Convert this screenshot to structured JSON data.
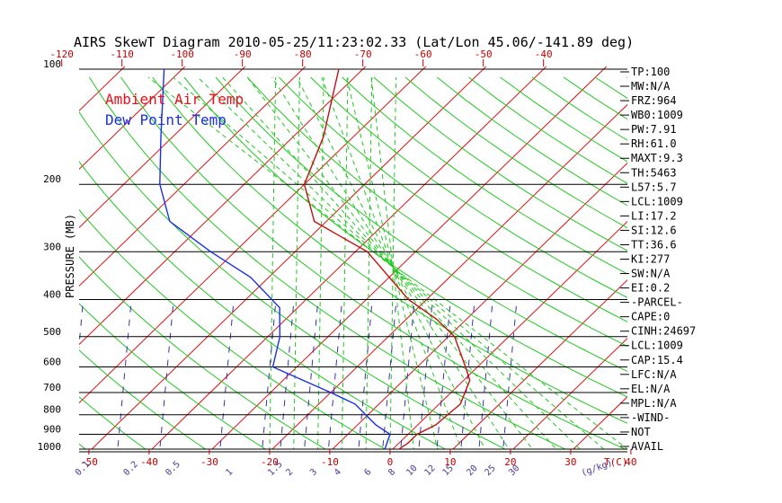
{
  "chart_data": {
    "type": "line",
    "title": "AIRS SkewT Diagram 2010-05-25/11:23:02.33 (Lat/Lon 45.06/-141.89 deg)",
    "ylabel": "PRESSURE (MB)",
    "xlabel_bottom_unit": "T(C)",
    "mixing_ratio_unit": "(g/kg)",
    "y_scale": "log",
    "ylim": [
      1000,
      100
    ],
    "pressure_ticks": [
      "100",
      "200",
      "300",
      "400",
      "500",
      "600",
      "700",
      "800",
      "900",
      "1000"
    ],
    "top_temp_ticks": [
      "-120",
      "-110",
      "-100",
      "-90",
      "-80",
      "-70",
      "-60",
      "-50",
      "-40"
    ],
    "bottom_temp_ticks": [
      "-50",
      "-40",
      "-30",
      "-20",
      "-10",
      "0",
      "10",
      "20",
      "30",
      "40"
    ],
    "mixing_ratio_ticks": [
      "0.1",
      "0.2",
      "0.5",
      "1",
      "1.5",
      "2",
      "3",
      "4",
      "6",
      "8",
      "10",
      "12",
      "15",
      "20",
      "25",
      "30"
    ],
    "legend": [
      {
        "name": "Ambient Air Temp",
        "color": "#e8101a"
      },
      {
        "name": "Dew Point Temp",
        "color": "#1a2ee8"
      }
    ],
    "series": [
      {
        "name": "Ambient Air Temp",
        "color": "#c01010",
        "points": [
          {
            "p": 1000,
            "t": 0.8
          },
          {
            "p": 950,
            "t": 1.5
          },
          {
            "p": 900,
            "t": 1.5
          },
          {
            "p": 850,
            "t": 3.0
          },
          {
            "p": 750,
            "t": 3.5
          },
          {
            "p": 650,
            "t": 1.0
          },
          {
            "p": 600,
            "t": -2.0
          },
          {
            "p": 500,
            "t": -9.0
          },
          {
            "p": 450,
            "t": -15.0
          },
          {
            "p": 400,
            "t": -23.0
          },
          {
            "p": 300,
            "t": -38.0
          },
          {
            "p": 250,
            "t": -52.0
          },
          {
            "p": 200,
            "t": -60.0
          },
          {
            "p": 150,
            "t": -65.0
          },
          {
            "p": 100,
            "t": -74.0
          }
        ]
      },
      {
        "name": "Dew Point Temp",
        "color": "#1a2ee8",
        "points": [
          {
            "p": 1000,
            "t": -1.0
          },
          {
            "p": 900,
            "t": -3.0
          },
          {
            "p": 850,
            "t": -7.0
          },
          {
            "p": 750,
            "t": -14.0
          },
          {
            "p": 700,
            "t": -20.0
          },
          {
            "p": 600,
            "t": -34.0
          },
          {
            "p": 500,
            "t": -38.0
          },
          {
            "p": 420,
            "t": -43.0
          },
          {
            "p": 350,
            "t": -53.0
          },
          {
            "p": 300,
            "t": -64.0
          },
          {
            "p": 250,
            "t": -76.0
          },
          {
            "p": 200,
            "t": -84.0
          },
          {
            "p": 150,
            "t": -92.0
          },
          {
            "p": 100,
            "t": -103.0
          }
        ]
      }
    ]
  },
  "stats": [
    "TP:100",
    "MW:N/A",
    "FRZ:964",
    "WB0:1009",
    "PW:7.91",
    "RH:61.0",
    "MAXT:9.3",
    "TH:5463",
    "L57:5.7",
    "LCL:1009",
    "LI:17.2",
    "SI:12.6",
    "TT:36.6",
    "KI:277",
    "SW:N/A",
    "EI:0.2",
    "-PARCEL-",
    "CAPE:0",
    "CINH:24697",
    "LCL:1009",
    "CAP:15.4",
    "LFC:N/A",
    "EL:N/A",
    "MPL:N/A",
    "-WIND-",
    "NOT",
    "AVAIL"
  ],
  "colors": {
    "isotherm": "#e01010",
    "dry_adiabat": "#20c820",
    "moist_adiabat": "#20c820",
    "mixing_ratio": "#3a30a8",
    "isobar": "#000000",
    "tick_red": "#c00000",
    "mixing_label": "#503898"
  }
}
